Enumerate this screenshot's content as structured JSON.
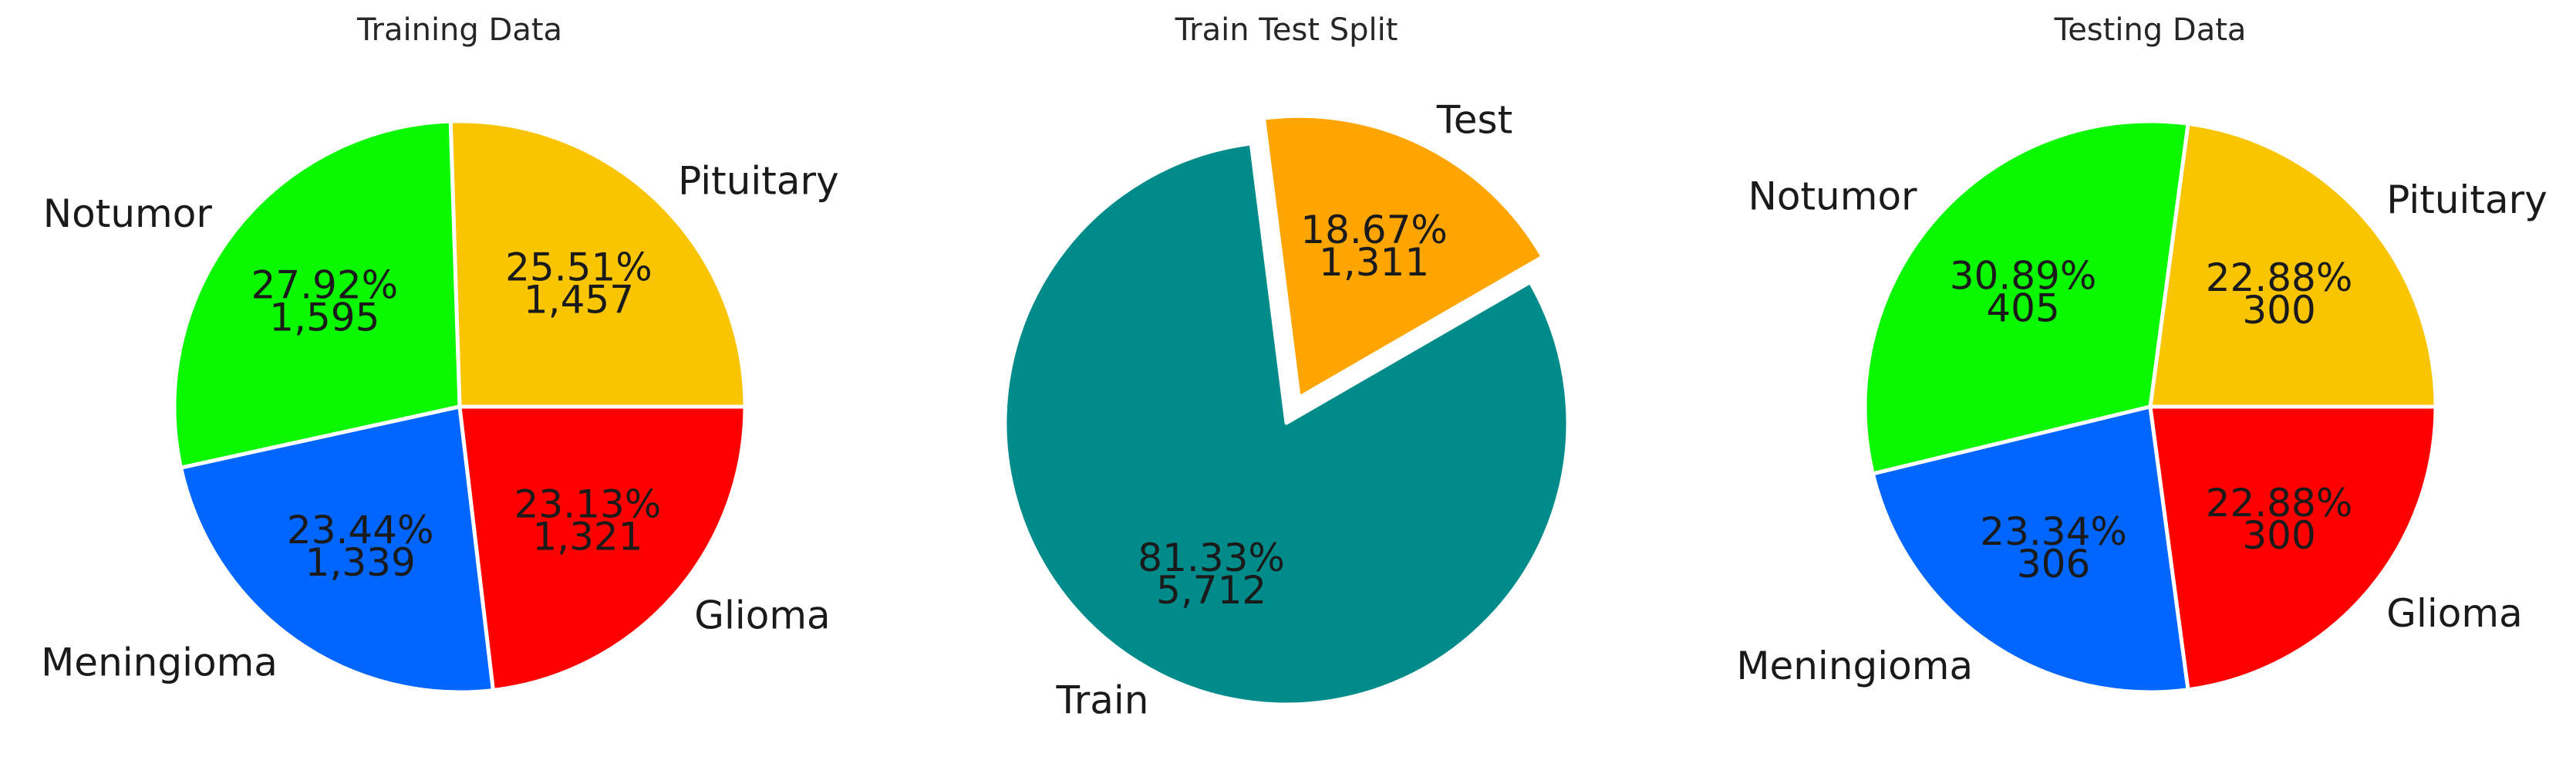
{
  "chart_data": [
    {
      "type": "pie",
      "title": "Training Data",
      "categories": [
        "Pituitary",
        "Notumor",
        "Meningioma",
        "Glioma"
      ],
      "values": [
        1457,
        1595,
        1339,
        1321
      ],
      "percent_labels": [
        "25.51%",
        "27.92%",
        "23.44%",
        "23.13%"
      ],
      "count_labels": [
        "1,457",
        "1,595",
        "1,339",
        "1,321"
      ],
      "colors": [
        "#F9C400",
        "#0BF900",
        "#0066FF",
        "#FF0000"
      ],
      "explode": [
        0,
        0,
        0,
        0
      ],
      "start_angle": 0,
      "direction": "counterclockwise"
    },
    {
      "type": "pie",
      "title": "Train Test Split",
      "categories": [
        "Test",
        "Train"
      ],
      "values": [
        1311,
        5712
      ],
      "percent_labels": [
        "18.67%",
        "81.33%"
      ],
      "count_labels": [
        "1,311",
        "5,712"
      ],
      "colors": [
        "#FFA500",
        "#008B8B"
      ],
      "explode": [
        1,
        0
      ],
      "start_angle": 30,
      "direction": "counterclockwise"
    },
    {
      "type": "pie",
      "title": "Testing Data",
      "categories": [
        "Pituitary",
        "Notumor",
        "Meningioma",
        "Glioma"
      ],
      "values": [
        300,
        405,
        306,
        300
      ],
      "percent_labels": [
        "22.88%",
        "30.89%",
        "23.34%",
        "22.88%"
      ],
      "count_labels": [
        "300",
        "405",
        "306",
        "300"
      ],
      "colors": [
        "#F9C400",
        "#0BF900",
        "#0066FF",
        "#FF0000"
      ],
      "explode": [
        0,
        0,
        0,
        0
      ],
      "start_angle": 0,
      "direction": "counterclockwise"
    }
  ]
}
